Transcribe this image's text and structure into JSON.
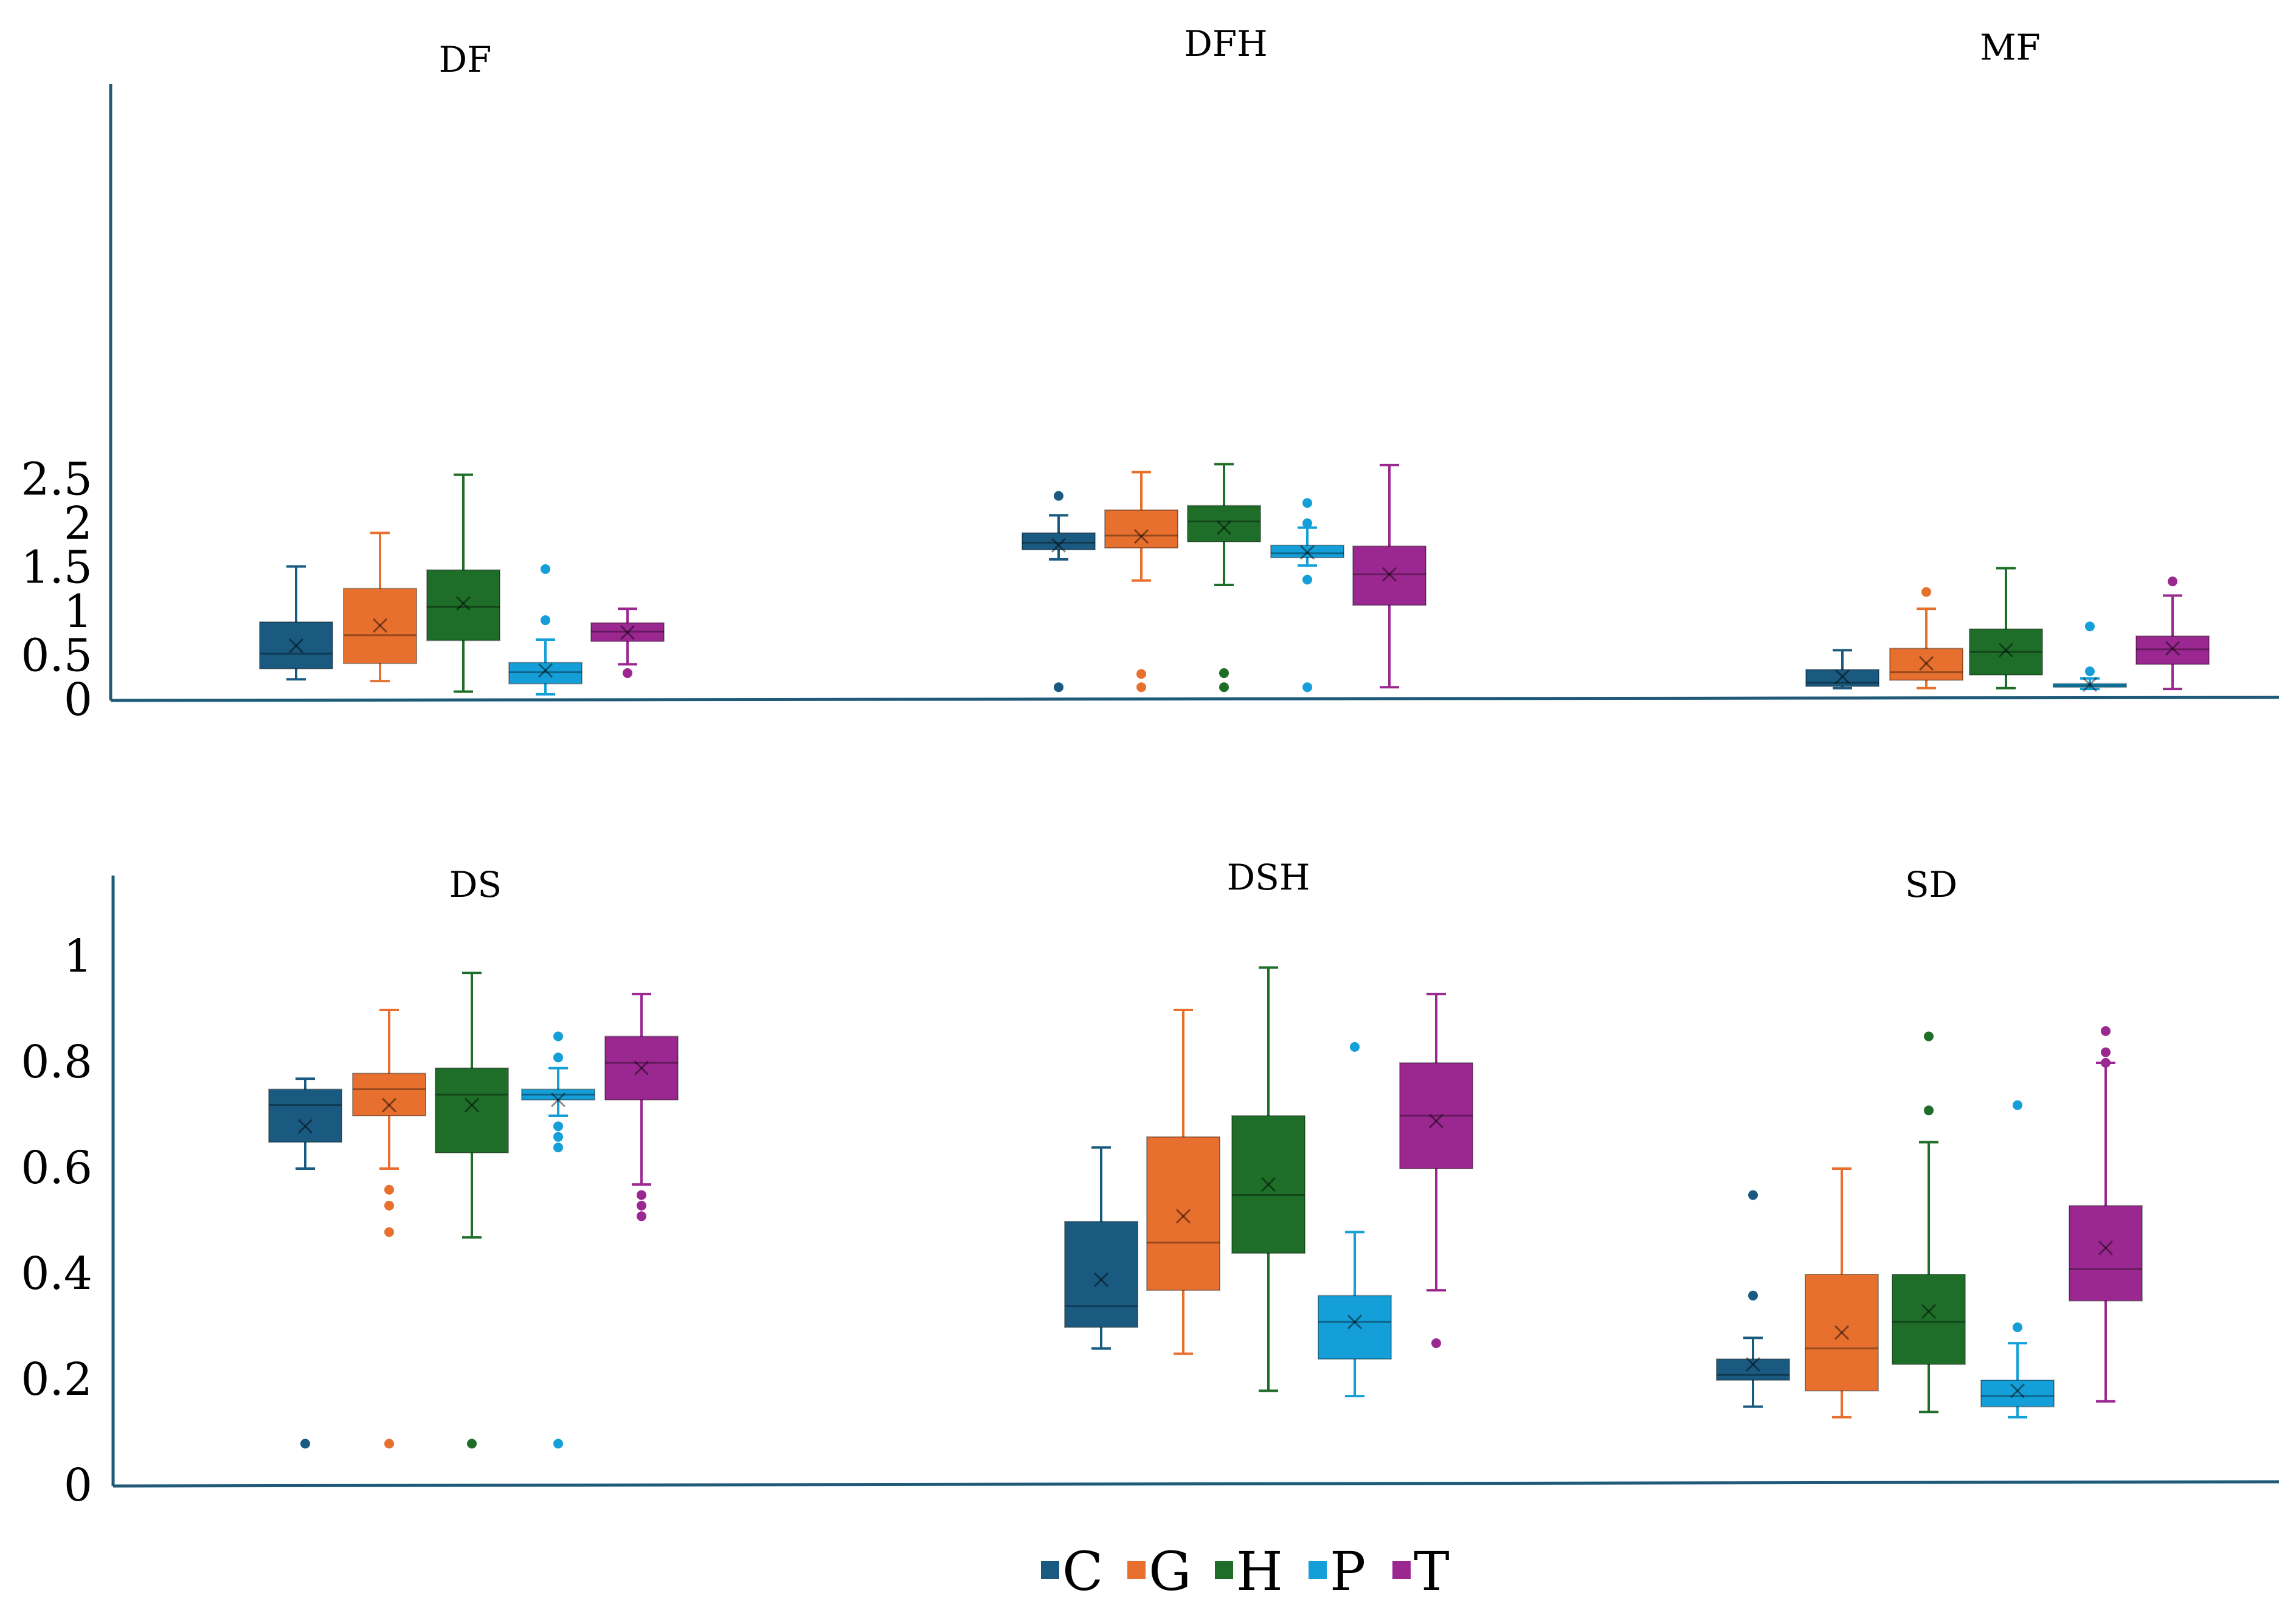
{
  "legend": [
    {
      "label": "C",
      "color": "#1a5a80"
    },
    {
      "label": "G",
      "color": "#e8702f"
    },
    {
      "label": "H",
      "color": "#1e6e29"
    },
    {
      "label": "P",
      "color": "#159fd8"
    },
    {
      "label": "T",
      "color": "#9b2891"
    }
  ],
  "chart_data": [
    {
      "type": "box",
      "title": "DF",
      "group": "top",
      "series": [
        {
          "name": "C",
          "whisker_low": 0.24,
          "q1": 0.36,
          "median": 0.53,
          "q3": 0.89,
          "whisker_high": 1.52,
          "mean": 0.62,
          "outliers": []
        },
        {
          "name": "G",
          "whisker_low": 0.22,
          "q1": 0.42,
          "median": 0.74,
          "q3": 1.27,
          "whisker_high": 1.9,
          "mean": 0.85,
          "outliers": []
        },
        {
          "name": "H",
          "whisker_low": 0.1,
          "q1": 0.68,
          "median": 1.06,
          "q3": 1.48,
          "whisker_high": 2.56,
          "mean": 1.1,
          "outliers": []
        },
        {
          "name": "P",
          "whisker_low": 0.07,
          "q1": 0.19,
          "median": 0.32,
          "q3": 0.43,
          "whisker_high": 0.69,
          "mean": 0.34,
          "outliers": [
            0.91,
            1.49
          ]
        },
        {
          "name": "T",
          "whisker_low": 0.41,
          "q1": 0.67,
          "median": 0.78,
          "q3": 0.88,
          "whisker_high": 1.04,
          "mean": 0.77,
          "outliers": [
            0.31
          ]
        }
      ]
    },
    {
      "type": "box",
      "title": "DFH",
      "group": "top",
      "series": [
        {
          "name": "C",
          "whisker_low": 1.6,
          "q1": 1.71,
          "median": 1.79,
          "q3": 1.9,
          "whisker_high": 2.1,
          "mean": 1.76,
          "outliers": [
            2.32,
            0.15
          ]
        },
        {
          "name": "G",
          "whisker_low": 1.36,
          "q1": 1.73,
          "median": 1.87,
          "q3": 2.16,
          "whisker_high": 2.59,
          "mean": 1.86,
          "outliers": [
            0.3,
            0.15
          ]
        },
        {
          "name": "H",
          "whisker_low": 1.31,
          "q1": 1.8,
          "median": 2.03,
          "q3": 2.21,
          "whisker_high": 2.68,
          "mean": 1.96,
          "outliers": [
            0.31,
            0.15
          ]
        },
        {
          "name": "P",
          "whisker_low": 1.53,
          "q1": 1.62,
          "median": 1.67,
          "q3": 1.76,
          "whisker_high": 1.96,
          "mean": 1.68,
          "outliers": [
            2.24,
            2.01,
            1.37,
            0.15
          ]
        },
        {
          "name": "T",
          "whisker_low": 0.15,
          "q1": 1.08,
          "median": 1.43,
          "q3": 1.75,
          "whisker_high": 2.67,
          "mean": 1.43,
          "outliers": []
        }
      ]
    },
    {
      "type": "box",
      "title": "MF",
      "group": "top",
      "series": [
        {
          "name": "C",
          "whisker_low": 0.14,
          "q1": 0.16,
          "median": 0.2,
          "q3": 0.35,
          "whisker_high": 0.57,
          "mean": 0.27,
          "outliers": []
        },
        {
          "name": "G",
          "whisker_low": 0.14,
          "q1": 0.23,
          "median": 0.32,
          "q3": 0.59,
          "whisker_high": 1.04,
          "mean": 0.42,
          "outliers": [
            1.23
          ]
        },
        {
          "name": "H",
          "whisker_low": 0.14,
          "q1": 0.29,
          "median": 0.55,
          "q3": 0.81,
          "whisker_high": 1.5,
          "mean": 0.57,
          "outliers": []
        },
        {
          "name": "P",
          "whisker_low": 0.13,
          "q1": 0.15,
          "median": 0.17,
          "q3": 0.19,
          "whisker_high": 0.25,
          "mean": 0.18,
          "outliers": [
            0.33,
            0.84
          ]
        },
        {
          "name": "T",
          "whisker_low": 0.13,
          "q1": 0.41,
          "median": 0.58,
          "q3": 0.73,
          "whisker_high": 1.19,
          "mean": 0.59,
          "outliers": [
            1.35
          ]
        }
      ]
    },
    {
      "type": "box",
      "title": "DS",
      "group": "bottom",
      "series": [
        {
          "name": "C",
          "whisker_low": 0.6,
          "q1": 0.65,
          "median": 0.72,
          "q3": 0.75,
          "whisker_high": 0.77,
          "mean": 0.68,
          "outliers": [
            0.08
          ]
        },
        {
          "name": "G",
          "whisker_low": 0.6,
          "q1": 0.7,
          "median": 0.75,
          "q3": 0.78,
          "whisker_high": 0.9,
          "mean": 0.72,
          "outliers": [
            0.56,
            0.53,
            0.48,
            0.08
          ]
        },
        {
          "name": "H",
          "whisker_low": 0.47,
          "q1": 0.63,
          "median": 0.74,
          "q3": 0.79,
          "whisker_high": 0.97,
          "mean": 0.72,
          "outliers": [
            0.08
          ]
        },
        {
          "name": "P",
          "whisker_low": 0.7,
          "q1": 0.73,
          "median": 0.74,
          "q3": 0.75,
          "whisker_high": 0.79,
          "mean": 0.73,
          "outliers": [
            0.85,
            0.81,
            0.68,
            0.66,
            0.64,
            0.08
          ]
        },
        {
          "name": "T",
          "whisker_low": 0.57,
          "q1": 0.73,
          "median": 0.8,
          "q3": 0.85,
          "whisker_high": 0.93,
          "mean": 0.79,
          "outliers": [
            0.55,
            0.53,
            0.51
          ]
        }
      ]
    },
    {
      "type": "box",
      "title": "DSH",
      "group": "bottom",
      "series": [
        {
          "name": "C",
          "whisker_low": 0.26,
          "q1": 0.3,
          "median": 0.34,
          "q3": 0.5,
          "whisker_high": 0.64,
          "mean": 0.39,
          "outliers": []
        },
        {
          "name": "G",
          "whisker_low": 0.25,
          "q1": 0.37,
          "median": 0.46,
          "q3": 0.66,
          "whisker_high": 0.9,
          "mean": 0.51,
          "outliers": []
        },
        {
          "name": "H",
          "whisker_low": 0.18,
          "q1": 0.44,
          "median": 0.55,
          "q3": 0.7,
          "whisker_high": 0.98,
          "mean": 0.57,
          "outliers": []
        },
        {
          "name": "P",
          "whisker_low": 0.17,
          "q1": 0.24,
          "median": 0.31,
          "q3": 0.36,
          "whisker_high": 0.48,
          "mean": 0.31,
          "outliers": [
            0.83
          ]
        },
        {
          "name": "T",
          "whisker_low": 0.37,
          "q1": 0.6,
          "median": 0.7,
          "q3": 0.8,
          "whisker_high": 0.93,
          "mean": 0.69,
          "outliers": [
            0.27
          ]
        }
      ]
    },
    {
      "type": "box",
      "title": "SD",
      "group": "bottom",
      "series": [
        {
          "name": "C",
          "whisker_low": 0.15,
          "q1": 0.2,
          "median": 0.21,
          "q3": 0.24,
          "whisker_high": 0.28,
          "mean": 0.23,
          "outliers": [
            0.55,
            0.36
          ]
        },
        {
          "name": "G",
          "whisker_low": 0.13,
          "q1": 0.18,
          "median": 0.26,
          "q3": 0.4,
          "whisker_high": 0.6,
          "mean": 0.29,
          "outliers": []
        },
        {
          "name": "H",
          "whisker_low": 0.14,
          "q1": 0.23,
          "median": 0.31,
          "q3": 0.4,
          "whisker_high": 0.65,
          "mean": 0.33,
          "outliers": [
            0.85,
            0.71
          ]
        },
        {
          "name": "P",
          "whisker_low": 0.13,
          "q1": 0.15,
          "median": 0.17,
          "q3": 0.2,
          "whisker_high": 0.27,
          "mean": 0.18,
          "outliers": [
            0.3,
            0.72
          ]
        },
        {
          "name": "T",
          "whisker_low": 0.16,
          "q1": 0.35,
          "median": 0.41,
          "q3": 0.53,
          "whisker_high": 0.8,
          "mean": 0.45,
          "outliers": [
            0.86,
            0.82,
            0.8
          ]
        }
      ]
    }
  ],
  "axes": {
    "top": {
      "ticks": [
        "0",
        "0.5",
        "1",
        "1.5",
        "2",
        "2.5"
      ],
      "tick_values": [
        0,
        0.5,
        1,
        1.5,
        2,
        2.5
      ],
      "ylim": [
        0,
        2.8
      ]
    },
    "bottom": {
      "ticks": [
        "0",
        "0.2",
        "0.4",
        "0.6",
        "0.8",
        "1"
      ],
      "tick_values": [
        0,
        0.2,
        0.4,
        0.6,
        0.8,
        1
      ],
      "ylim": [
        0,
        1.1
      ]
    }
  }
}
